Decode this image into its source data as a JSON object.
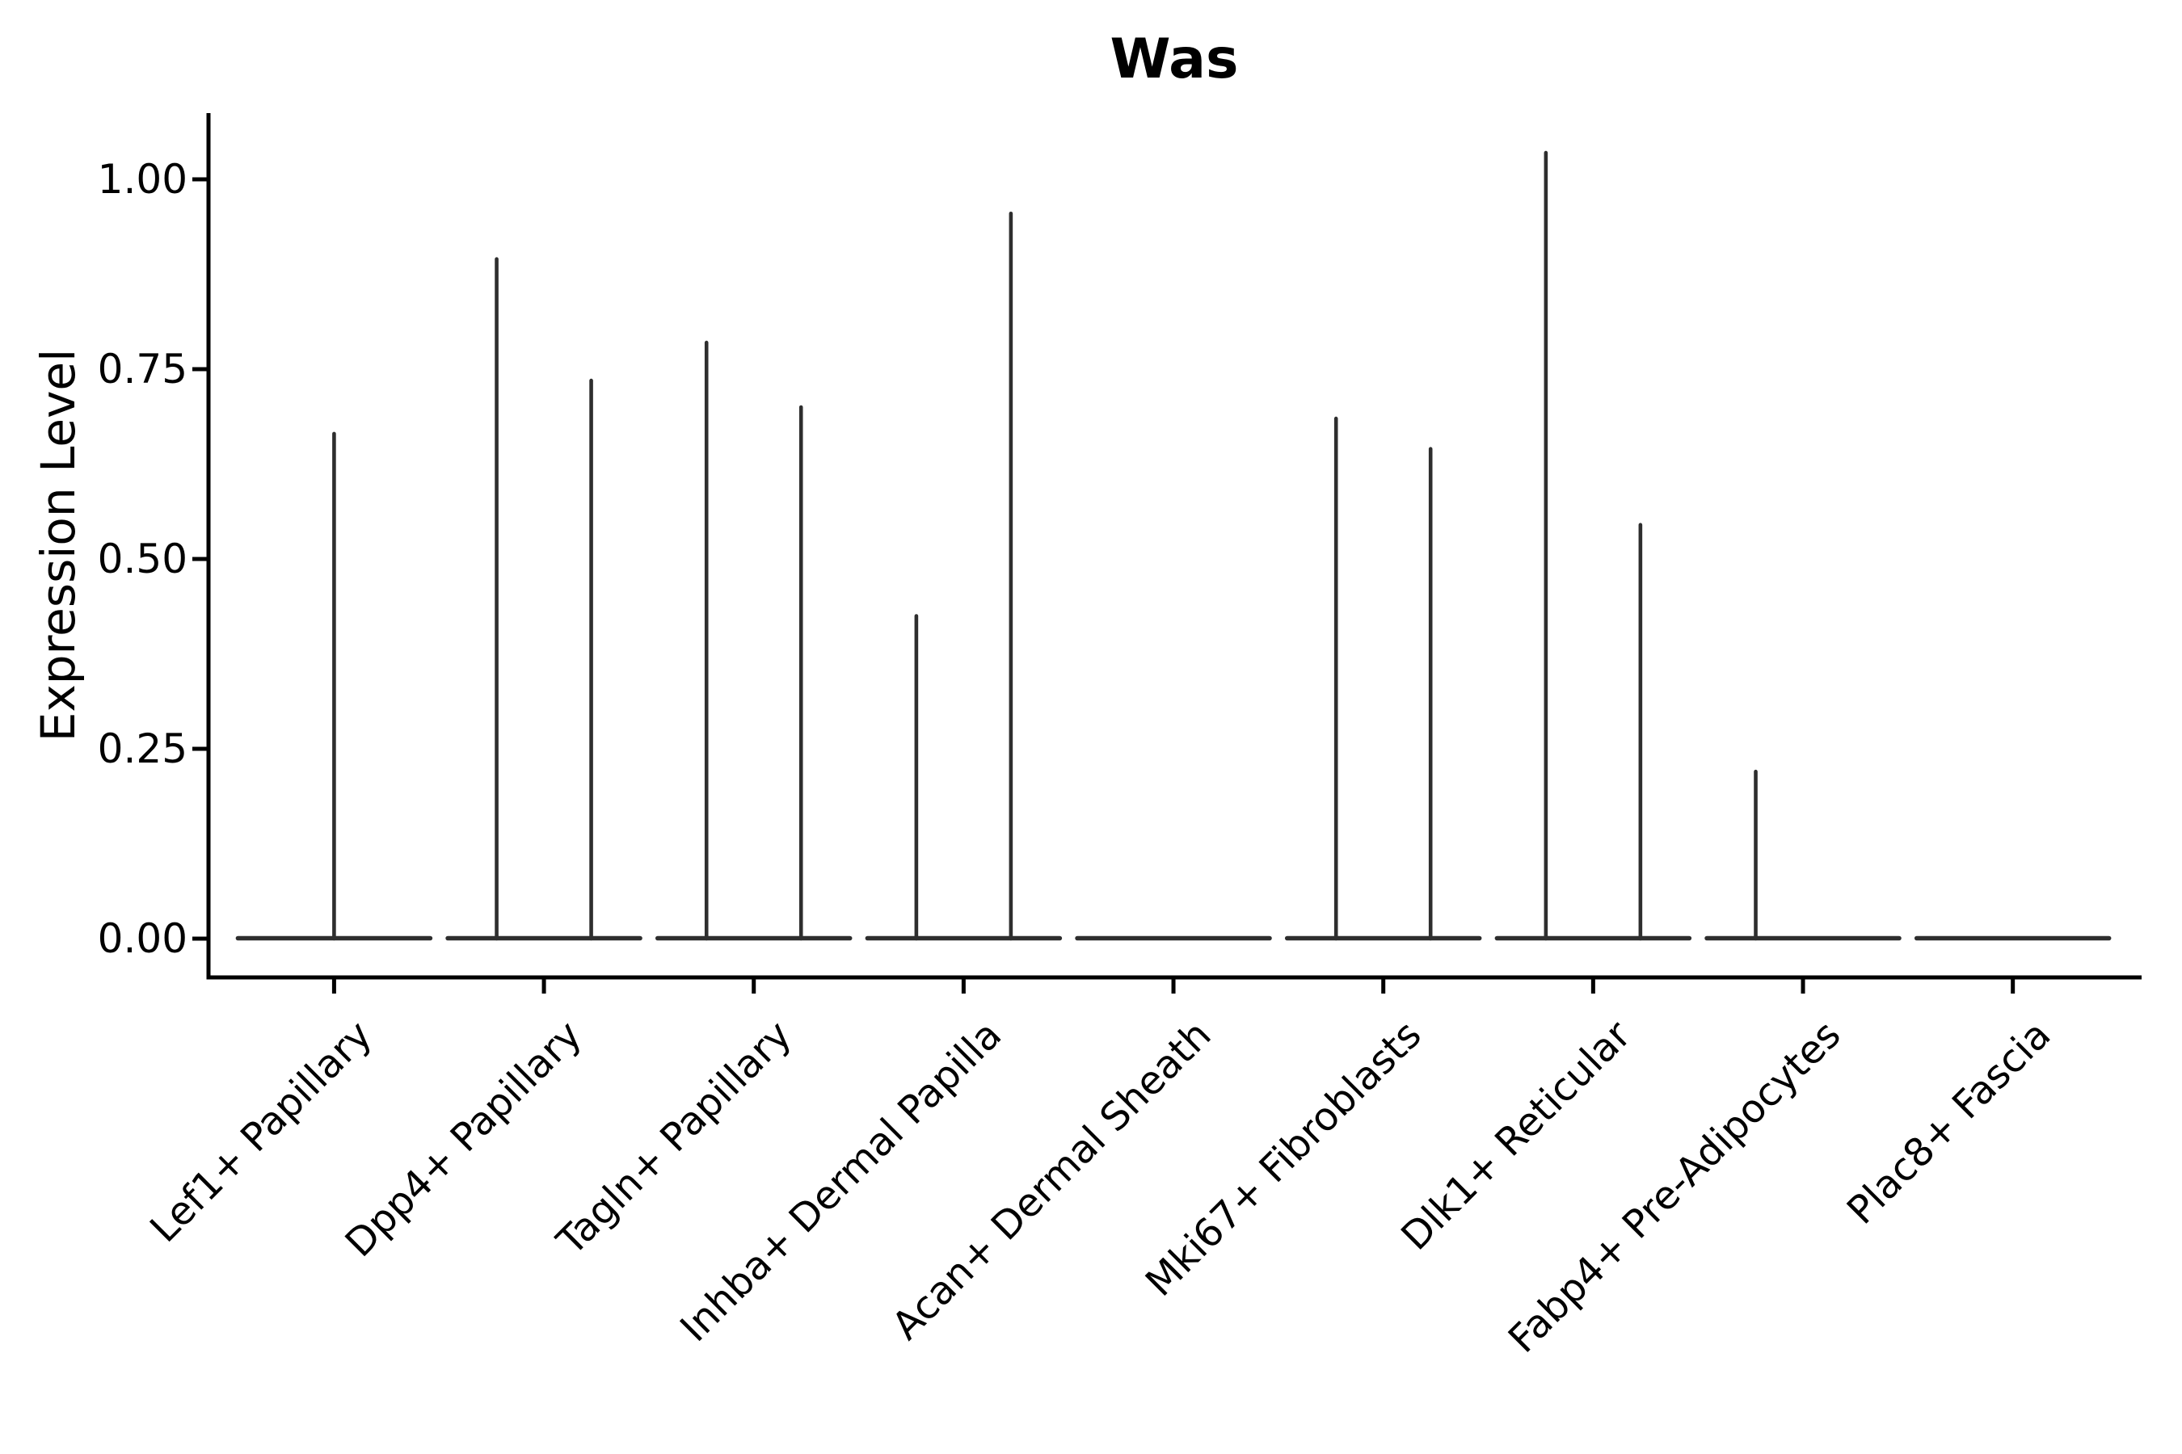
{
  "figure": {
    "background": "#ffffff"
  },
  "chart_data": {
    "type": "violin",
    "title": "Was",
    "xlabel": "",
    "ylabel": "Expression Level",
    "grid": false,
    "legend": "none",
    "ylim": [
      -0.055,
      1.09
    ],
    "yticks": [
      {
        "label": "0.00",
        "value": 0.0
      },
      {
        "label": "0.25",
        "value": 0.25
      },
      {
        "label": "0.50",
        "value": 0.5
      },
      {
        "label": "0.75",
        "value": 0.75
      },
      {
        "label": "1.00",
        "value": 1.0
      }
    ],
    "categories": [
      "Lef1+ Papillary",
      "Dpp4+ Papillary",
      "Tagln+ Papillary",
      "Inhba+ Dermal Papilla",
      "Acan+ Dermal Sheath",
      "Mki67+ Fibroblasts",
      "Dlk1+ Reticular",
      "Fabp4+ Pre-Adipocytes",
      "Plac8+ Fascia"
    ],
    "violins": [
      {
        "category": "Lef1+ Papillary",
        "base_value": 0,
        "spikes": [
          {
            "offset": 0,
            "peak": 0.665
          }
        ]
      },
      {
        "category": "Dpp4+ Papillary",
        "base_value": 0,
        "spikes": [
          {
            "offset": -1,
            "peak": 0.895
          },
          {
            "offset": 1,
            "peak": 0.735
          }
        ]
      },
      {
        "category": "Tagln+ Papillary",
        "base_value": 0,
        "spikes": [
          {
            "offset": -1,
            "peak": 0.785
          },
          {
            "offset": 1,
            "peak": 0.7
          }
        ]
      },
      {
        "category": "Inhba+ Dermal Papilla",
        "base_value": 0,
        "spikes": [
          {
            "offset": -1,
            "peak": 0.425
          },
          {
            "offset": 1,
            "peak": 0.955
          }
        ]
      },
      {
        "category": "Acan+ Dermal Sheath",
        "base_value": 0,
        "spikes": []
      },
      {
        "category": "Mki67+ Fibroblasts",
        "base_value": 0,
        "spikes": [
          {
            "offset": -1,
            "peak": 0.685
          },
          {
            "offset": 1,
            "peak": 0.645
          }
        ]
      },
      {
        "category": "Dlk1+ Reticular",
        "base_value": 0,
        "spikes": [
          {
            "offset": -1,
            "peak": 1.035
          },
          {
            "offset": 1,
            "peak": 0.545
          }
        ]
      },
      {
        "category": "Fabp4+ Pre-Adipocytes",
        "base_value": 0,
        "spikes": [
          {
            "offset": -1,
            "peak": 0.22
          }
        ]
      },
      {
        "category": "Plac8+ Fascia",
        "base_value": 0,
        "spikes": []
      }
    ],
    "colors": {
      "violin_stroke": "#2e2e2e",
      "axis": "#000000",
      "text": "#000000",
      "background": "#ffffff"
    }
  }
}
